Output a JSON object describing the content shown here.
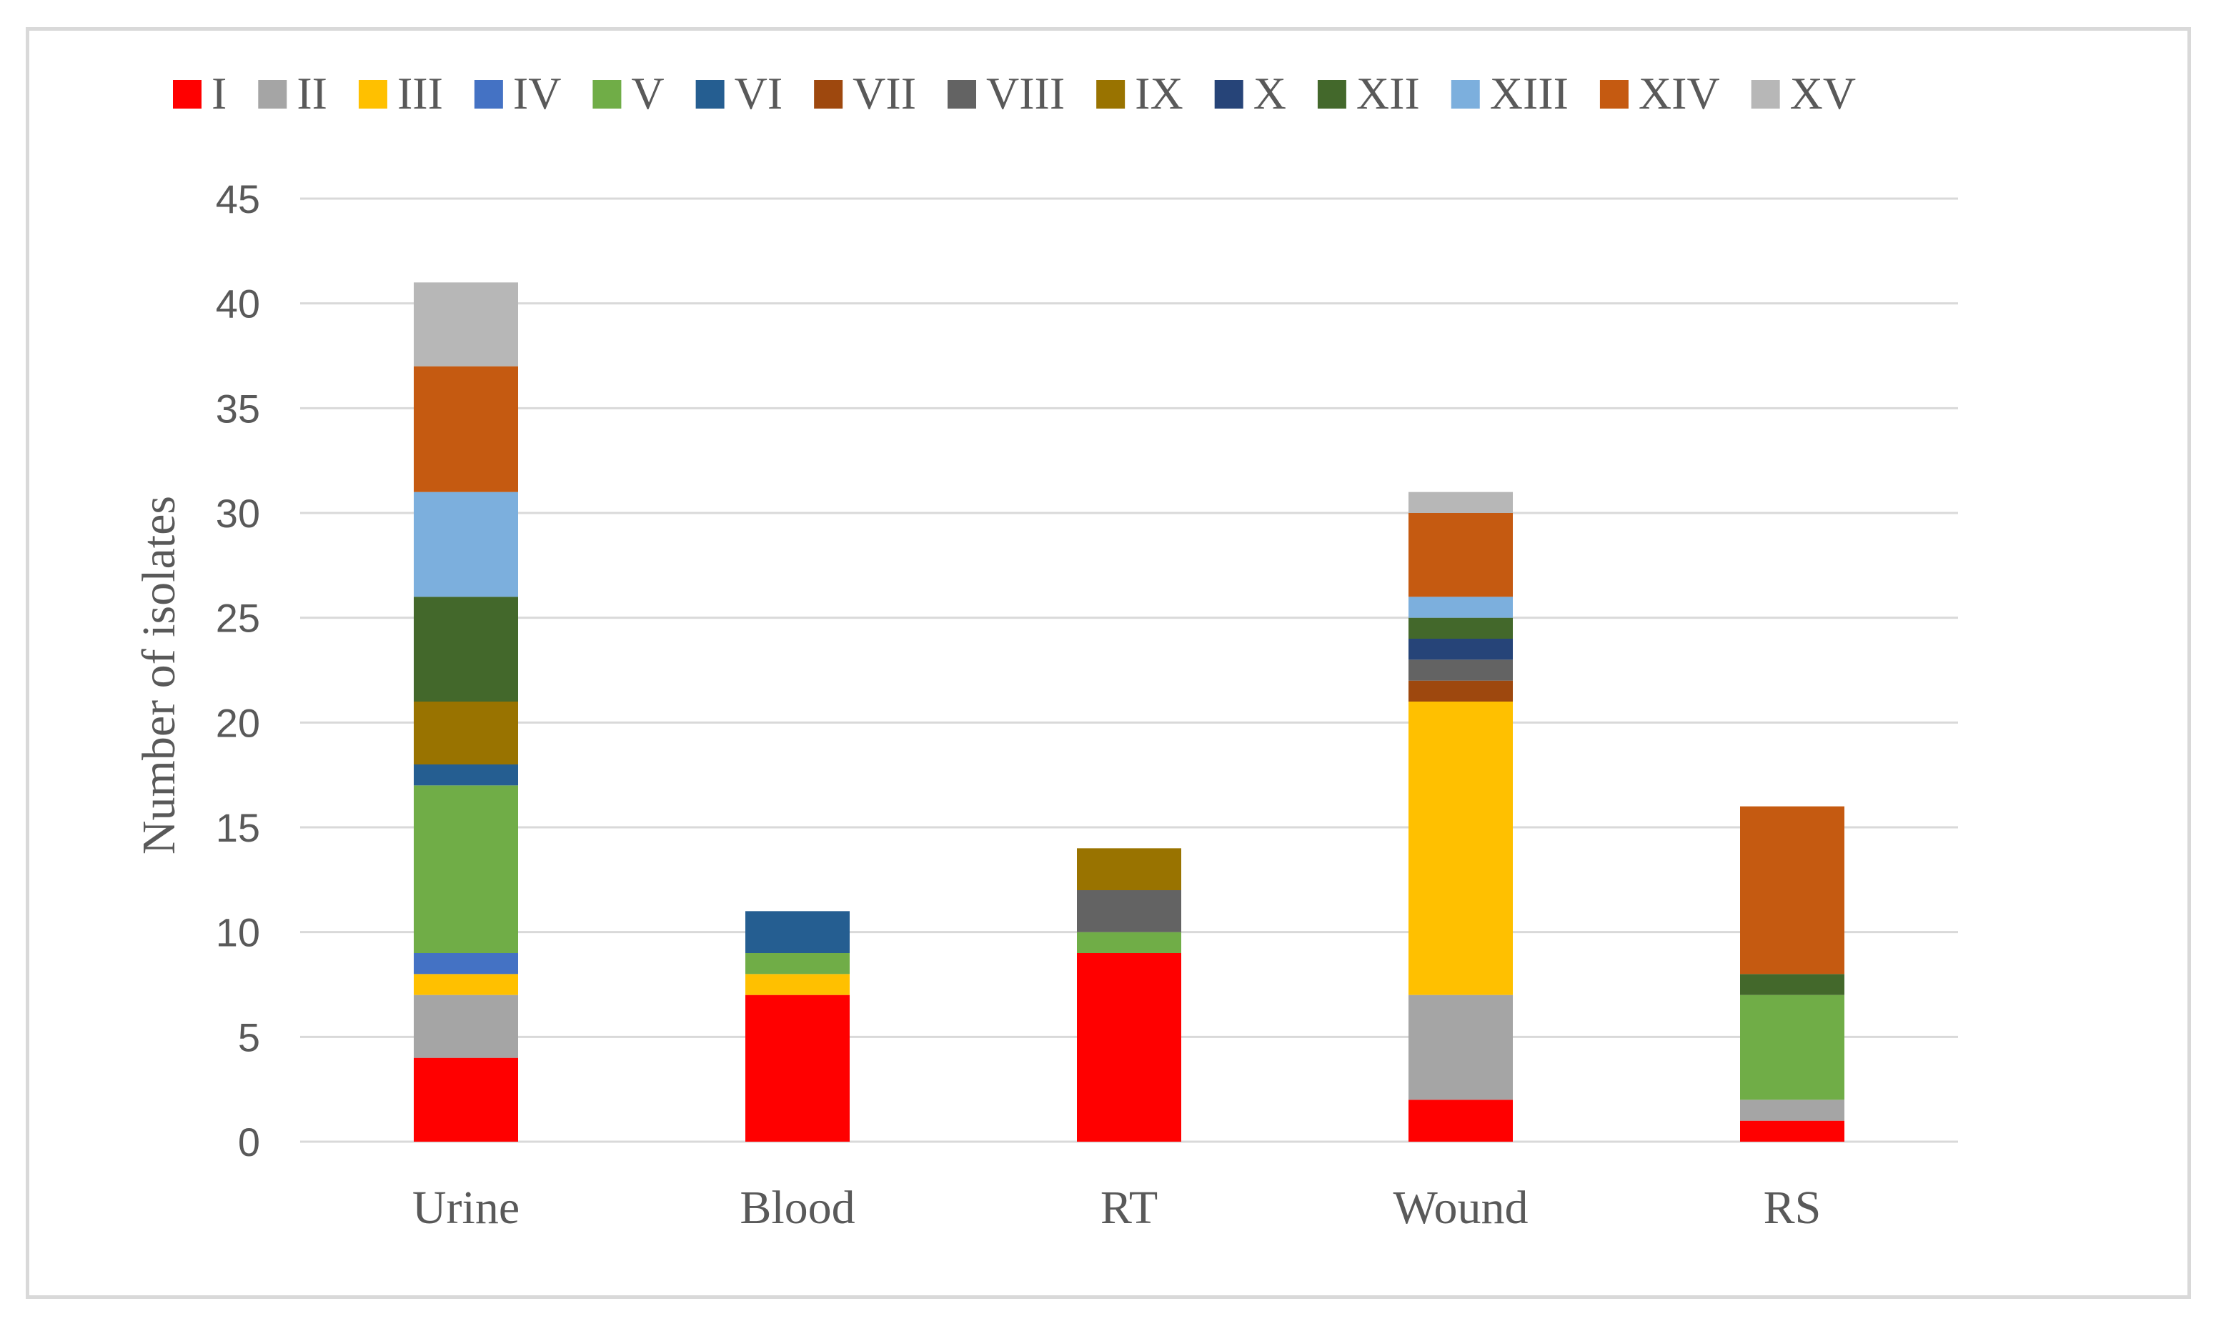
{
  "chart_data": {
    "type": "bar",
    "stacked": true,
    "title": "",
    "xlabel": "",
    "ylabel": "Number of isolates",
    "ylim": [
      0,
      45
    ],
    "yticks": [
      0,
      5,
      10,
      15,
      20,
      25,
      30,
      35,
      40,
      45
    ],
    "grid": true,
    "legend_position": "top",
    "categories": [
      "Urine",
      "Blood",
      "RT",
      "Wound",
      "RS"
    ],
    "series": [
      {
        "name": "I",
        "color": "#FF0000",
        "values": [
          4,
          7,
          9,
          2,
          1
        ]
      },
      {
        "name": "II",
        "color": "#A5A5A5",
        "values": [
          3,
          0,
          0,
          5,
          1
        ]
      },
      {
        "name": "III",
        "color": "#FFC000",
        "values": [
          1,
          1,
          0,
          14,
          0
        ]
      },
      {
        "name": "IV",
        "color": "#4472C4",
        "values": [
          1,
          0,
          0,
          0,
          0
        ]
      },
      {
        "name": "V",
        "color": "#70AD47",
        "values": [
          8,
          1,
          1,
          0,
          5
        ]
      },
      {
        "name": "VI",
        "color": "#255E91",
        "values": [
          1,
          2,
          0,
          0,
          0
        ]
      },
      {
        "name": "VII",
        "color": "#9E480E",
        "values": [
          0,
          0,
          0,
          1,
          0
        ]
      },
      {
        "name": "VIII",
        "color": "#636363",
        "values": [
          0,
          0,
          2,
          1,
          0
        ]
      },
      {
        "name": "IX",
        "color": "#997300",
        "values": [
          3,
          0,
          2,
          0,
          0
        ]
      },
      {
        "name": "X",
        "color": "#264478",
        "values": [
          0,
          0,
          0,
          1,
          0
        ]
      },
      {
        "name": "XII",
        "color": "#43682B",
        "values": [
          5,
          0,
          0,
          1,
          1
        ]
      },
      {
        "name": "XIII",
        "color": "#7CAFDD",
        "values": [
          5,
          0,
          0,
          1,
          0
        ]
      },
      {
        "name": "XIV",
        "color": "#C55A11",
        "values": [
          6,
          0,
          0,
          4,
          8
        ]
      },
      {
        "name": "XV",
        "color": "#B7B7B7",
        "values": [
          4,
          0,
          0,
          1,
          0
        ]
      }
    ]
  }
}
